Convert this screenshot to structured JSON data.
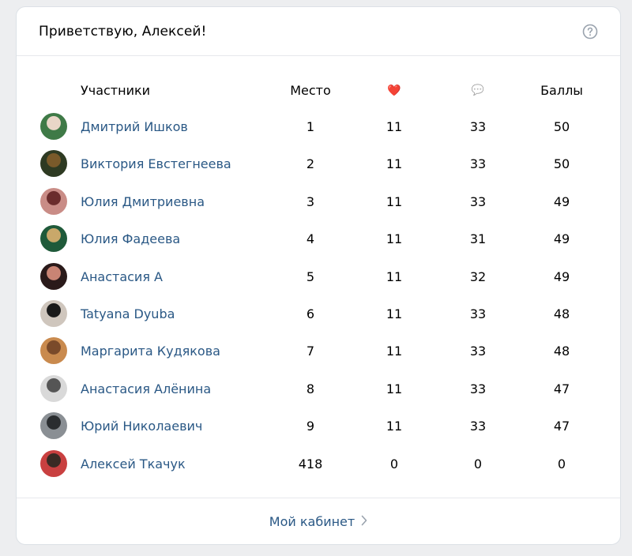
{
  "header": {
    "greeting": "Приветствую, Алексей!"
  },
  "columns": {
    "participants": "Участники",
    "place": "Место",
    "likes_icon": "❤️",
    "comments_icon": "💬",
    "points": "Баллы"
  },
  "rows": [
    {
      "name": "Дмитрий Ишков",
      "place": "1",
      "likes": "11",
      "comments": "33",
      "points": "50",
      "avatar_colors": [
        "#3f7a47",
        "#e9d6c7"
      ]
    },
    {
      "name": "Виктория Евстегнеева",
      "place": "2",
      "likes": "11",
      "comments": "33",
      "points": "50",
      "avatar_colors": [
        "#2e3a22",
        "#7a5a2a"
      ]
    },
    {
      "name": "Юлия Дмитриевна",
      "place": "3",
      "likes": "11",
      "comments": "33",
      "points": "49",
      "avatar_colors": [
        "#c98c86",
        "#6b2c2c"
      ]
    },
    {
      "name": "Юлия Фадеева",
      "place": "4",
      "likes": "11",
      "comments": "31",
      "points": "49",
      "avatar_colors": [
        "#1f5a3a",
        "#c9a86a"
      ]
    },
    {
      "name": "Анастасия А",
      "place": "5",
      "likes": "11",
      "comments": "32",
      "points": "49",
      "avatar_colors": [
        "#2a1a1a",
        "#c98474"
      ]
    },
    {
      "name": "Tatyana Dyuba",
      "place": "6",
      "likes": "11",
      "comments": "33",
      "points": "48",
      "avatar_colors": [
        "#cfc6bd",
        "#1a1a1a"
      ]
    },
    {
      "name": "Маргарита Кудякова",
      "place": "7",
      "likes": "11",
      "comments": "33",
      "points": "48",
      "avatar_colors": [
        "#c98a4e",
        "#7a4a2a"
      ]
    },
    {
      "name": "Анастасия Алёнина",
      "place": "8",
      "likes": "11",
      "comments": "33",
      "points": "47",
      "avatar_colors": [
        "#d9d9d9",
        "#555555"
      ]
    },
    {
      "name": "Юрий Николаевич",
      "place": "9",
      "likes": "11",
      "comments": "33",
      "points": "47",
      "avatar_colors": [
        "#8a8f94",
        "#2a2d30"
      ]
    },
    {
      "name": "Алексей Ткачук",
      "place": "418",
      "likes": "0",
      "comments": "0",
      "points": "0",
      "avatar_colors": [
        "#c94040",
        "#3a2a24"
      ]
    }
  ],
  "footer": {
    "link_label": "Мой кабинет"
  },
  "icons": {
    "help": "question-circle-icon",
    "chevron": "chevron-right-icon"
  },
  "colors": {
    "link": "#2a5885",
    "background": "#edeef0",
    "card": "#ffffff"
  }
}
